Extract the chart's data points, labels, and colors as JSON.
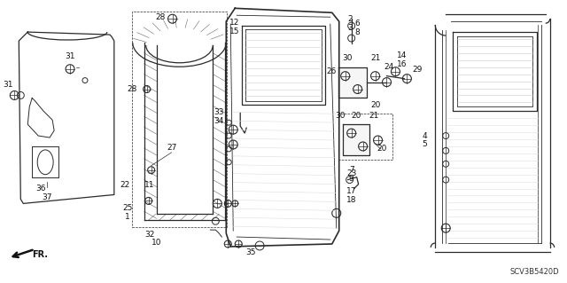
{
  "bg_color": "#ffffff",
  "diagram_code": "SCV3B5420D",
  "arrow_label": "FR.",
  "fig_width": 6.4,
  "fig_height": 3.19,
  "dpi": 100
}
